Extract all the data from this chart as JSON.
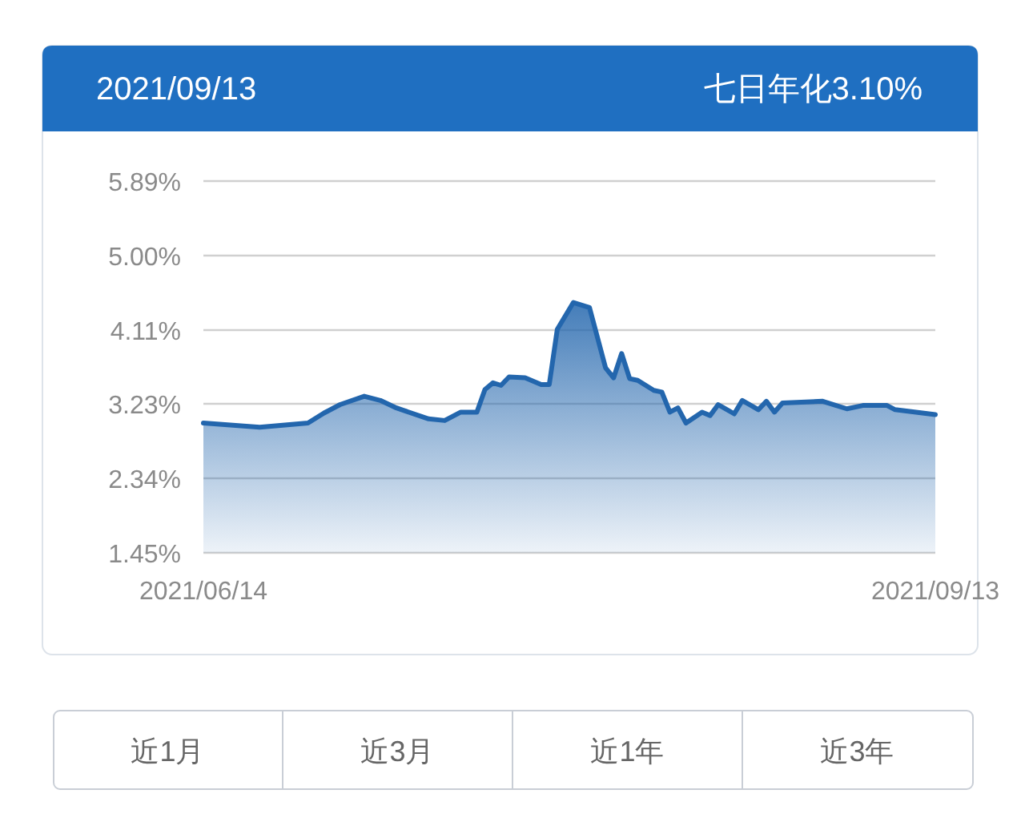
{
  "chart_data": {
    "type": "area",
    "title": "2021/09/13",
    "subtitle": "七日年化3.10%",
    "x": [
      "2021-06-14",
      "2021-06-21",
      "2021-06-27",
      "2021-06-29",
      "2021-07-01",
      "2021-07-04",
      "2021-07-06",
      "2021-07-08",
      "2021-07-12",
      "2021-07-14",
      "2021-07-15",
      "2021-07-16",
      "2021-07-18",
      "2021-07-19",
      "2021-07-20",
      "2021-07-21",
      "2021-07-22",
      "2021-07-24",
      "2021-07-26",
      "2021-07-27",
      "2021-07-28",
      "2021-07-30",
      "2021-08-01",
      "2021-08-03",
      "2021-08-04",
      "2021-08-05",
      "2021-08-06",
      "2021-08-07",
      "2021-08-09",
      "2021-08-10",
      "2021-08-11",
      "2021-08-12",
      "2021-08-13",
      "2021-08-15",
      "2021-08-16",
      "2021-08-17",
      "2021-08-19",
      "2021-08-20",
      "2021-08-22",
      "2021-08-23",
      "2021-08-24",
      "2021-08-25",
      "2021-08-30",
      "2021-09-02",
      "2021-09-04",
      "2021-09-07",
      "2021-09-08",
      "2021-09-13"
    ],
    "series": [
      {
        "color": "#2366ad",
        "values": [
          3.0,
          2.95,
          3.0,
          3.12,
          3.22,
          3.32,
          3.27,
          3.18,
          3.05,
          3.03,
          3.08,
          3.13,
          3.13,
          3.4,
          3.48,
          3.45,
          3.55,
          3.54,
          3.46,
          3.46,
          4.12,
          4.44,
          4.38,
          3.66,
          3.54,
          3.83,
          3.53,
          3.51,
          3.39,
          3.37,
          3.13,
          3.18,
          3.0,
          3.13,
          3.09,
          3.22,
          3.11,
          3.27,
          3.16,
          3.26,
          3.13,
          3.24,
          3.26,
          3.17,
          3.21,
          3.21,
          3.16,
          3.1
        ]
      }
    ],
    "xlim": [
      "2021-06-14",
      "2021-09-13"
    ],
    "xticks": [
      {
        "value": "2021-06-14",
        "label": "2021/06/14"
      },
      {
        "value": "2021-09-13",
        "label": "2021/09/13"
      }
    ],
    "ylim": [
      1.45,
      5.89
    ],
    "yticks": [
      {
        "value": 1.45,
        "label": "1.45%"
      },
      {
        "value": 2.34,
        "label": "2.34%"
      },
      {
        "value": 3.23,
        "label": "3.23%"
      },
      {
        "value": 4.11,
        "label": "4.11%"
      },
      {
        "value": 5.0,
        "label": "5.00%"
      },
      {
        "value": 5.89,
        "label": "5.89%"
      }
    ],
    "grid": "y",
    "annotations": [
      "近1月",
      "近3月",
      "近1年",
      "近3年"
    ]
  }
}
